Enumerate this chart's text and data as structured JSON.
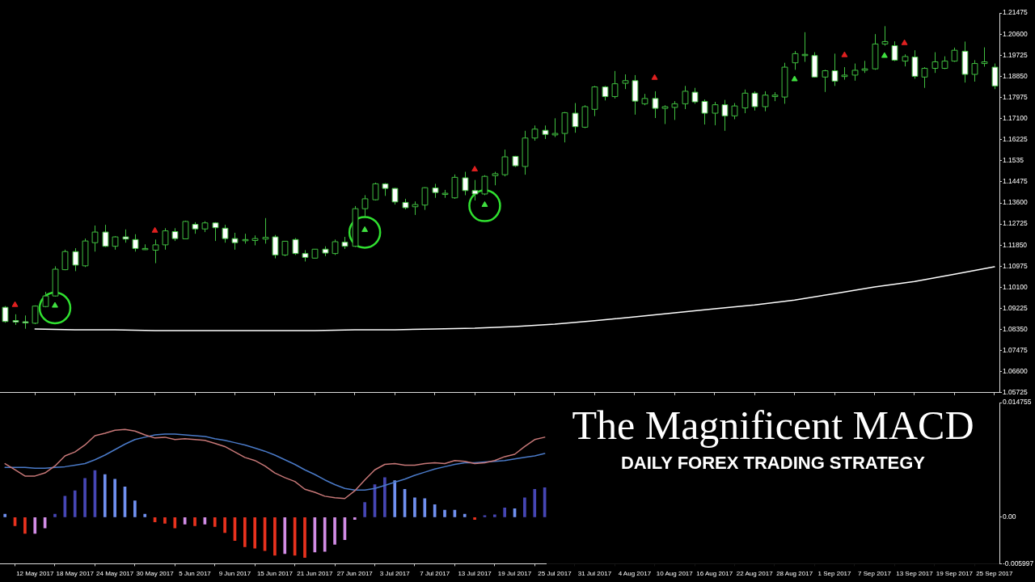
{
  "chart_data": [
    {
      "type": "candlestick",
      "tick_labels": "y",
      "categories": [
        null,
        null,
        null,
        "12 May 2017",
        null,
        null,
        null,
        "18 May 2017",
        null,
        null,
        null,
        "24 May 2017",
        null,
        null,
        null,
        "30 May 2017",
        null,
        null,
        null,
        "5 Jun 2017",
        null,
        null,
        null,
        "9 Jun 2017",
        null,
        null,
        null,
        "15 Jun 2017",
        null,
        null,
        null,
        "21 Jun 2017",
        null,
        null,
        null,
        "27 Jun 2017",
        null,
        null,
        null,
        "3 Jul 2017",
        null,
        null,
        null,
        "7 Jul 2017",
        null,
        null,
        null,
        "13 Jul 2017",
        null,
        null,
        null,
        "19 Jul 2017",
        null,
        null,
        null,
        "25 Jul 2017",
        null,
        null,
        null,
        "31 Jul 2017",
        null,
        null,
        null,
        "4 Aug 2017",
        null,
        null,
        null,
        "10 Aug 2017",
        null,
        null,
        null,
        "16 Aug 2017",
        null,
        null,
        null,
        "22 Aug 2017",
        null,
        null,
        null,
        "28 Aug 2017",
        null,
        null,
        null,
        "1 Sep 2017",
        null,
        null,
        null,
        "7 Sep 2017",
        null,
        null,
        null,
        "13 Sep 2017",
        null,
        null,
        null,
        "19 Sep 2017",
        null,
        null,
        null,
        "25 Sep 2017"
      ],
      "color": "#40c040",
      "colors": [
        "#ffffff",
        "#ffffff",
        "#ffffff",
        "#000000",
        "#000000",
        "#000000",
        "#000000",
        "#ffffff",
        "#000000",
        "#000000",
        "#ffffff",
        "#000000",
        "#ffffff",
        "#ffffff",
        "#000000",
        "#000000",
        "#000000",
        "#ffffff",
        "#000000",
        "#ffffff",
        "#000000",
        "#ffffff",
        "#ffffff",
        "#ffffff",
        "#000000",
        "#000000",
        "#000000",
        "#ffffff",
        "#000000",
        "#ffffff",
        "#ffffff",
        "#000000",
        "#ffffff",
        "#000000",
        "#ffffff",
        "#000000",
        "#000000",
        "#000000",
        "#ffffff",
        "#ffffff",
        "#ffffff",
        "#000000",
        "#000000",
        "#ffffff",
        "#000000",
        "#000000",
        "#ffffff",
        "#ffffff",
        "#000000",
        "#000000",
        "#000000",
        "#ffffff",
        "#000000",
        "#000000",
        "#ffffff",
        "#000000",
        "#000000",
        "#ffffff",
        "#000000",
        "#000000",
        "#ffffff",
        "#000000",
        "#000000",
        "#ffffff",
        "#000000",
        "#ffffff",
        "#000000",
        "#000000",
        "#000000",
        "#ffffff",
        "#ffffff",
        "#000000",
        "#ffffff",
        "#000000",
        "#000000",
        "#ffffff",
        "#000000",
        "#000000",
        "#000000",
        "#000000",
        "#000000",
        "#ffffff",
        "#000000",
        "#ffffff",
        "#000000",
        "#000000",
        "#000000",
        "#000000",
        "#000000",
        "#ffffff",
        "#000000",
        "#ffffff",
        "#000000",
        "#000000",
        "#000000",
        "#000000",
        "#ffffff",
        "#000000",
        "#000000",
        "#ffffff"
      ],
      "ohlc": [
        [
          1.0927,
          1.0932,
          1.0863,
          1.0868
        ],
        [
          1.0872,
          1.0898,
          1.0854,
          1.0866
        ],
        [
          1.0867,
          1.0893,
          1.0838,
          1.0862
        ],
        [
          1.0861,
          1.0935,
          1.0857,
          1.0932
        ],
        [
          1.093,
          1.0991,
          1.0927,
          1.0974
        ],
        [
          1.0974,
          1.1097,
          1.0972,
          1.1085
        ],
        [
          1.1083,
          1.1166,
          1.1081,
          1.1158
        ],
        [
          1.1158,
          1.1172,
          1.1077,
          1.1102
        ],
        [
          1.1099,
          1.1212,
          1.1094,
          1.1202
        ],
        [
          1.1195,
          1.1266,
          1.1158,
          1.1239
        ],
        [
          1.1239,
          1.1269,
          1.1177,
          1.118
        ],
        [
          1.118,
          1.1222,
          1.1166,
          1.1219
        ],
        [
          1.1219,
          1.125,
          1.1195,
          1.121
        ],
        [
          1.1208,
          1.123,
          1.1158,
          1.1171
        ],
        [
          1.1166,
          1.1188,
          1.1165,
          1.1171
        ],
        [
          1.1164,
          1.1208,
          1.111,
          1.1186
        ],
        [
          1.1186,
          1.1255,
          1.1166,
          1.1244
        ],
        [
          1.1241,
          1.1255,
          1.1202,
          1.1212
        ],
        [
          1.1211,
          1.1286,
          1.121,
          1.1283
        ],
        [
          1.1271,
          1.128,
          1.1232,
          1.1252
        ],
        [
          1.1252,
          1.1284,
          1.1239,
          1.1277
        ],
        [
          1.1277,
          1.128,
          1.1202,
          1.1257
        ],
        [
          1.1255,
          1.1269,
          1.1195,
          1.1212
        ],
        [
          1.1212,
          1.1236,
          1.1166,
          1.1195
        ],
        [
          1.1204,
          1.1232,
          1.1191,
          1.1208
        ],
        [
          1.1204,
          1.1225,
          1.1184,
          1.1212
        ],
        [
          1.121,
          1.1297,
          1.1191,
          1.1217
        ],
        [
          1.1219,
          1.1227,
          1.113,
          1.1144
        ],
        [
          1.1144,
          1.1202,
          1.1139,
          1.1201
        ],
        [
          1.1208,
          1.1214,
          1.1144,
          1.115
        ],
        [
          1.115,
          1.1164,
          1.1117,
          1.1134
        ],
        [
          1.1131,
          1.1169,
          1.113,
          1.1168
        ],
        [
          1.1168,
          1.118,
          1.1139,
          1.1152
        ],
        [
          1.115,
          1.1208,
          1.1144,
          1.1199
        ],
        [
          1.1197,
          1.1219,
          1.1169,
          1.118
        ],
        [
          1.118,
          1.1347,
          1.1177,
          1.1336
        ],
        [
          1.1336,
          1.1392,
          1.1303,
          1.1377
        ],
        [
          1.1373,
          1.1444,
          1.137,
          1.1439
        ],
        [
          1.1439,
          1.1442,
          1.1389,
          1.142
        ],
        [
          1.142,
          1.1422,
          1.1353,
          1.1364
        ],
        [
          1.1362,
          1.1377,
          1.1333,
          1.134
        ],
        [
          1.1344,
          1.1366,
          1.131,
          1.1353
        ],
        [
          1.1351,
          1.1425,
          1.1331,
          1.1423
        ],
        [
          1.1422,
          1.1439,
          1.1381,
          1.1403
        ],
        [
          1.1398,
          1.1414,
          1.1381,
          1.14
        ],
        [
          1.1381,
          1.1478,
          1.1377,
          1.1466
        ],
        [
          1.1464,
          1.1489,
          1.1392,
          1.1411
        ],
        [
          1.1411,
          1.1455,
          1.137,
          1.1397
        ],
        [
          1.1397,
          1.1475,
          1.1392,
          1.147
        ],
        [
          1.1473,
          1.1489,
          1.1433,
          1.1481
        ],
        [
          1.1477,
          1.1581,
          1.147,
          1.1551
        ],
        [
          1.1553,
          1.1555,
          1.1509,
          1.1514
        ],
        [
          1.1511,
          1.1659,
          1.1477,
          1.1629
        ],
        [
          1.1629,
          1.1681,
          1.1618,
          1.1666
        ],
        [
          1.1661,
          1.1681,
          1.1625,
          1.1644
        ],
        [
          1.1642,
          1.1711,
          1.1633,
          1.1648
        ],
        [
          1.1648,
          1.1737,
          1.1611,
          1.1734
        ],
        [
          1.1732,
          1.1774,
          1.1651,
          1.1676
        ],
        [
          1.1674,
          1.1765,
          1.167,
          1.1759
        ],
        [
          1.1748,
          1.1845,
          1.172,
          1.1841
        ],
        [
          1.1841,
          1.1845,
          1.1785,
          1.1801
        ],
        [
          1.1801,
          1.1907,
          1.1793,
          1.1854
        ],
        [
          1.1856,
          1.1893,
          1.1832,
          1.1867
        ],
        [
          1.1867,
          1.189,
          1.1726,
          1.1782
        ],
        [
          1.1771,
          1.1812,
          1.1765,
          1.1793
        ],
        [
          1.1793,
          1.1823,
          1.1712,
          1.1752
        ],
        [
          1.1752,
          1.1765,
          1.1687,
          1.1759
        ],
        [
          1.1756,
          1.1782,
          1.1704,
          1.1771
        ],
        [
          1.1771,
          1.1845,
          1.1749,
          1.1823
        ],
        [
          1.1819,
          1.1837,
          1.1771,
          1.1779
        ],
        [
          1.1781,
          1.1789,
          1.1685,
          1.1732
        ],
        [
          1.1732,
          1.1779,
          1.1682,
          1.1767
        ],
        [
          1.1767,
          1.1787,
          1.1659,
          1.1721
        ],
        [
          1.1721,
          1.1774,
          1.1707,
          1.1762
        ],
        [
          1.1754,
          1.183,
          1.1732,
          1.1815
        ],
        [
          1.1815,
          1.1823,
          1.1743,
          1.1759
        ],
        [
          1.1759,
          1.1823,
          1.174,
          1.1807
        ],
        [
          1.1801,
          1.1819,
          1.1782,
          1.1807
        ],
        [
          1.1799,
          1.1941,
          1.1771,
          1.1923
        ],
        [
          1.1941,
          1.199,
          1.1912,
          1.1979
        ],
        [
          1.1971,
          1.2068,
          1.1945,
          1.1976
        ],
        [
          1.1971,
          1.1985,
          1.188,
          1.1882
        ],
        [
          1.1882,
          1.1912,
          1.182,
          1.1908
        ],
        [
          1.1908,
          1.1979,
          1.1845,
          1.1865
        ],
        [
          1.1884,
          1.1923,
          1.1871,
          1.189
        ],
        [
          1.189,
          1.1938,
          1.1867,
          1.191
        ],
        [
          1.191,
          1.1949,
          1.1899,
          1.1916
        ],
        [
          1.1916,
          1.206,
          1.1912,
          1.2019
        ],
        [
          1.2019,
          1.2093,
          1.2012,
          1.2029
        ],
        [
          1.2012,
          1.203,
          1.1948,
          1.1952
        ],
        [
          1.1948,
          1.1976,
          1.1926,
          1.1967
        ],
        [
          1.1965,
          1.1993,
          1.1875,
          1.1885
        ],
        [
          1.1882,
          1.1923,
          1.1837,
          1.1918
        ],
        [
          1.1918,
          1.1985,
          1.1899,
          1.1945
        ],
        [
          1.1918,
          1.1968,
          1.1915,
          1.1948
        ],
        [
          1.1948,
          1.2004,
          1.1945,
          1.1993
        ],
        [
          1.1989,
          1.2029,
          1.1859,
          1.1893
        ],
        [
          1.1893,
          1.1952,
          1.1863,
          1.1938
        ],
        [
          1.1938,
          1.2005,
          1.1925,
          1.1945
        ],
        [
          1.1923,
          1.1938,
          1.1832,
          1.1845
        ]
      ],
      "series": [
        {
          "type": "line",
          "color": "#ffffff",
          "x": [
            "12 May 2017",
            "18 May 2017",
            "24 May 2017",
            "30 May 2017",
            "5 Jun 2017",
            "9 Jun 2017",
            "15 Jun 2017",
            "21 Jun 2017",
            "27 Jun 2017",
            "3 Jul 2017",
            "7 Jul 2017",
            "13 Jul 2017",
            "19 Jul 2017",
            "25 Jul 2017",
            "31 Jul 2017",
            "4 Aug 2017",
            "10 Aug 2017",
            "16 Aug 2017",
            "22 Aug 2017",
            "28 Aug 2017",
            "1 Sep 2017",
            "7 Sep 2017",
            "13 Sep 2017",
            "19 Sep 2017",
            "25 Sep 2017"
          ],
          "values": [
            1.0837,
            1.0834,
            1.0834,
            1.083,
            1.083,
            1.083,
            1.083,
            1.083,
            1.0834,
            1.0834,
            1.0837,
            1.084,
            1.0847,
            1.0857,
            1.0871,
            1.0887,
            1.0904,
            1.0921,
            1.0937,
            1.0957,
            1.0984,
            1.1011,
            1.1034,
            1.1064,
            1.1095
          ]
        },
        {
          "type": "scatter",
          "marker": "triangle",
          "color": "#e02020",
          "values": [
            null,
            1.0937,
            null,
            null,
            null,
            null,
            null,
            null,
            null,
            null,
            null,
            null,
            null,
            null,
            null,
            1.1245,
            null,
            null,
            null,
            null,
            null,
            null,
            null,
            null,
            null,
            null,
            null,
            null,
            null,
            null,
            null,
            null,
            null,
            null,
            null,
            null,
            null,
            null,
            null,
            null,
            null,
            null,
            null,
            null,
            null,
            null,
            null,
            1.1499,
            null,
            null,
            null,
            null,
            null,
            null,
            null,
            null,
            null,
            null,
            null,
            null,
            null,
            null,
            null,
            null,
            null,
            1.1879,
            null,
            null,
            null,
            null,
            null,
            null,
            null,
            null,
            null,
            null,
            null,
            null,
            null,
            null,
            null,
            null,
            null,
            null,
            1.1973,
            null,
            null,
            null,
            null,
            null,
            1.2023,
            null,
            null,
            null,
            null,
            null,
            null,
            null,
            null,
            null
          ]
        },
        {
          "type": "scatter",
          "marker": "triangle",
          "color": "#40e040",
          "values": [
            null,
            null,
            null,
            null,
            null,
            1.0934,
            null,
            null,
            null,
            null,
            null,
            null,
            null,
            null,
            null,
            null,
            null,
            null,
            null,
            null,
            null,
            null,
            null,
            null,
            null,
            null,
            null,
            null,
            null,
            null,
            null,
            null,
            null,
            null,
            null,
            null,
            1.1248,
            null,
            null,
            null,
            null,
            null,
            null,
            null,
            null,
            null,
            null,
            null,
            1.1352,
            null,
            null,
            null,
            null,
            null,
            null,
            null,
            null,
            null,
            null,
            null,
            null,
            null,
            null,
            null,
            null,
            null,
            null,
            null,
            null,
            null,
            null,
            null,
            null,
            null,
            null,
            null,
            null,
            null,
            null,
            1.1873,
            null,
            null,
            null,
            null,
            null,
            null,
            null,
            null,
            1.197,
            null,
            null,
            null,
            null,
            null,
            null,
            null,
            null,
            null,
            null,
            null
          ]
        },
        {
          "type": "scatter",
          "marker": "circle",
          "color": "#30e030",
          "values": [
            null,
            null,
            null,
            null,
            null,
            1.0924,
            null,
            null,
            null,
            null,
            null,
            null,
            null,
            null,
            null,
            null,
            null,
            null,
            null,
            null,
            null,
            null,
            null,
            null,
            null,
            null,
            null,
            null,
            null,
            null,
            null,
            null,
            null,
            null,
            null,
            null,
            1.1238,
            null,
            null,
            null,
            null,
            null,
            null,
            null,
            null,
            null,
            null,
            null,
            1.1348,
            null,
            null,
            null,
            null,
            null,
            null,
            null,
            null,
            null,
            null,
            null,
            null,
            null,
            null,
            null,
            null,
            null,
            null,
            null,
            null,
            null,
            null,
            null,
            null,
            null,
            null,
            null,
            null,
            null,
            null,
            null,
            null,
            null,
            null,
            null,
            null,
            null,
            null,
            null,
            null,
            null,
            null,
            null,
            null,
            null,
            null,
            null,
            null,
            null,
            null,
            null
          ]
        }
      ],
      "ylim": [
        1.05725,
        1.21475
      ],
      "yticks": [
        1.21475,
        {
          "value": 1.206,
          "label": "1.20600"
        },
        1.19725,
        {
          "value": 1.1885,
          "label": "1.18850"
        },
        1.17975,
        {
          "value": 1.171,
          "label": "1.17100"
        },
        1.16225,
        1.1535,
        1.14475,
        {
          "value": 1.136,
          "label": "1.13600"
        },
        1.12725,
        {
          "value": 1.1185,
          "label": "1.11850"
        },
        1.10975,
        {
          "value": 1.101,
          "label": "1.10100"
        },
        1.09225,
        {
          "value": 1.0835,
          "label": "1.08350"
        },
        1.07475,
        {
          "value": 1.066,
          "label": "1.06600"
        },
        1.05725
      ]
    },
    {
      "type": "bar",
      "title": "The Magnificent MACD",
      "subtitle": "DAILY FOREX TRADING STRATEGY",
      "categories": [
        null,
        null,
        null,
        "12 May 2017",
        null,
        null,
        null,
        "18 May 2017",
        null,
        null,
        null,
        "24 May 2017",
        null,
        null,
        null,
        "30 May 2017",
        null,
        null,
        null,
        "5 Jun 2017",
        null,
        null,
        null,
        "9 Jun 2017",
        null,
        null,
        null,
        "15 Jun 2017",
        null,
        null,
        null,
        "21 Jun 2017",
        null,
        null,
        null,
        "27 Jun 2017",
        null,
        null,
        null,
        "3 Jul 2017",
        null,
        null,
        null,
        "7 Jul 2017",
        null,
        null,
        null,
        "13 Jul 2017",
        null,
        null,
        null,
        "19 Jul 2017",
        null,
        null,
        null,
        "25 Jul 2017",
        null,
        null,
        null,
        "31 Jul 2017",
        null,
        null,
        null,
        "4 Aug 2017",
        null,
        null,
        null,
        "10 Aug 2017",
        null,
        null,
        null,
        "16 Aug 2017",
        null,
        null,
        null,
        "22 Aug 2017",
        null,
        null,
        null,
        "28 Aug 2017",
        null,
        null,
        null,
        "1 Sep 2017",
        null,
        null,
        null,
        "7 Sep 2017",
        null,
        null,
        null,
        "13 Sep 2017",
        null,
        null,
        null,
        "19 Sep 2017",
        null,
        null,
        null,
        "25 Sep 2017"
      ],
      "series": [
        {
          "type": "bar",
          "colors": [
            "#7090f0",
            "#e8321e",
            "#e8321e",
            "#d28ce6",
            "#d28ce6",
            "#4646b4",
            "#4646b4",
            "#4646b4",
            "#4646b4",
            "#4646b4",
            "#7090f0",
            "#7090f0",
            "#7090f0",
            "#7090f0",
            "#7090f0",
            "#e8321e",
            "#e8321e",
            "#e8321e",
            "#d28ce6",
            "#e8321e",
            "#d28ce6",
            "#e8321e",
            "#e8321e",
            "#e8321e",
            "#e8321e",
            "#e8321e",
            "#e8321e",
            "#e8321e",
            "#d28ce6",
            "#e8321e",
            "#e8321e",
            "#d28ce6",
            "#d28ce6",
            "#d28ce6",
            "#d28ce6",
            "#d28ce6",
            "#4646b4",
            "#4646b4",
            "#4646b4",
            "#7090f0",
            "#7090f0",
            "#7090f0",
            "#7090f0",
            "#7090f0",
            "#7090f0",
            "#7090f0",
            "#7090f0",
            "#e8321e",
            "#4646b4",
            "#4646b4",
            "#4646b4",
            "#7090f0",
            "#4646b4",
            "#4646b4",
            "#4646b4",
            null,
            null,
            null,
            null,
            null,
            null,
            null,
            null,
            null,
            null,
            null,
            null,
            null,
            null,
            null,
            null,
            null,
            null,
            null,
            null,
            null,
            null,
            null,
            null,
            null,
            null,
            null,
            null,
            null,
            null,
            null,
            null,
            null,
            null,
            null,
            null,
            null,
            null,
            null,
            null,
            null,
            null,
            null,
            null,
            null
          ],
          "values": [
            0.0004,
            -0.0011,
            -0.0021,
            -0.0021,
            -0.0014,
            0.0004,
            0.0027,
            0.0034,
            0.005,
            0.006,
            0.0055,
            0.0049,
            0.0039,
            0.0021,
            0.0004,
            -0.0006,
            -0.0008,
            -0.0014,
            -0.0009,
            -0.0011,
            -0.0009,
            -0.0012,
            -0.002,
            -0.003,
            -0.0038,
            -0.004,
            -0.0043,
            -0.0049,
            -0.0047,
            -0.0049,
            -0.0052,
            -0.0045,
            -0.0044,
            -0.0035,
            -0.0029,
            -0.0003,
            0.0019,
            0.0042,
            0.0051,
            0.0047,
            0.0036,
            0.0025,
            0.0024,
            0.0016,
            0.0009,
            0.0009,
            0.0004,
            -0.0003,
            0.0002,
            0.0003,
            0.0012,
            0.0011,
            0.0025,
            0.0036,
            0.0038,
            null,
            null,
            null,
            null,
            null,
            null,
            null,
            null,
            null,
            null,
            null,
            null,
            null,
            null,
            null,
            null,
            null,
            null,
            null,
            null,
            null,
            null,
            null,
            null,
            null,
            null,
            null,
            null,
            null,
            null,
            null,
            null,
            null,
            null,
            null,
            null,
            null,
            null,
            null,
            null,
            null,
            null,
            null,
            null,
            null
          ]
        },
        {
          "type": "line",
          "color": "#c87878",
          "values": [
            0.0069,
            0.0061,
            0.0053,
            0.0053,
            0.0057,
            0.0066,
            0.0079,
            0.0084,
            0.0093,
            0.0105,
            0.0108,
            0.0112,
            0.0113,
            0.0111,
            0.0106,
            0.0102,
            0.0103,
            0.01,
            0.0101,
            0.01,
            0.0099,
            0.0095,
            0.0091,
            0.0084,
            0.0077,
            0.0073,
            0.0066,
            0.0057,
            0.0051,
            0.0046,
            0.0036,
            0.0032,
            0.0027,
            0.0025,
            0.0024,
            0.0034,
            0.0048,
            0.0061,
            0.0068,
            0.0069,
            0.0067,
            0.0067,
            0.0069,
            0.007,
            0.0069,
            0.0073,
            0.0072,
            0.0069,
            0.007,
            0.0073,
            0.0078,
            0.0081,
            0.0091,
            0.01,
            0.0103,
            null,
            null,
            null,
            null,
            null,
            null,
            null,
            null,
            null,
            null,
            null,
            null,
            null,
            null,
            null,
            null,
            null,
            null,
            null,
            null,
            null,
            null,
            null,
            null,
            null,
            null,
            null,
            null,
            null,
            null,
            null,
            null,
            null,
            null,
            null,
            null,
            null,
            null,
            null,
            null,
            null,
            null,
            null,
            null,
            null
          ]
        },
        {
          "type": "line",
          "color": "#4a7ac8",
          "values": [
            0.0064,
            0.0064,
            0.0064,
            0.0063,
            0.0063,
            0.0064,
            0.0065,
            0.0067,
            0.0069,
            0.0074,
            0.008,
            0.0087,
            0.0094,
            0.01,
            0.0103,
            0.0106,
            0.0107,
            0.0107,
            0.0106,
            0.0105,
            0.0104,
            0.0101,
            0.0099,
            0.0096,
            0.0093,
            0.0089,
            0.0085,
            0.008,
            0.0074,
            0.0068,
            0.0061,
            0.0055,
            0.0048,
            0.0042,
            0.0037,
            0.0035,
            0.0035,
            0.0037,
            0.0041,
            0.0045,
            0.0049,
            0.0054,
            0.0058,
            0.0062,
            0.0065,
            0.0068,
            0.007,
            0.007,
            0.0071,
            0.0072,
            0.0073,
            0.0075,
            0.0077,
            0.0079,
            0.0082,
            null,
            null,
            null,
            null,
            null,
            null,
            null,
            null,
            null,
            null,
            null,
            null,
            null,
            null,
            null,
            null,
            null,
            null,
            null,
            null,
            null,
            null,
            null,
            null,
            null,
            null,
            null,
            null,
            null,
            null,
            null,
            null,
            null,
            null,
            null,
            null,
            null,
            null,
            null,
            null,
            null,
            null,
            null,
            null,
            null
          ]
        }
      ],
      "ylim": [
        -0.005997,
        0.014755
      ],
      "yticks": [
        0.014755,
        {
          "value": 0,
          "label": "0.00"
        },
        -0.005997
      ]
    }
  ]
}
